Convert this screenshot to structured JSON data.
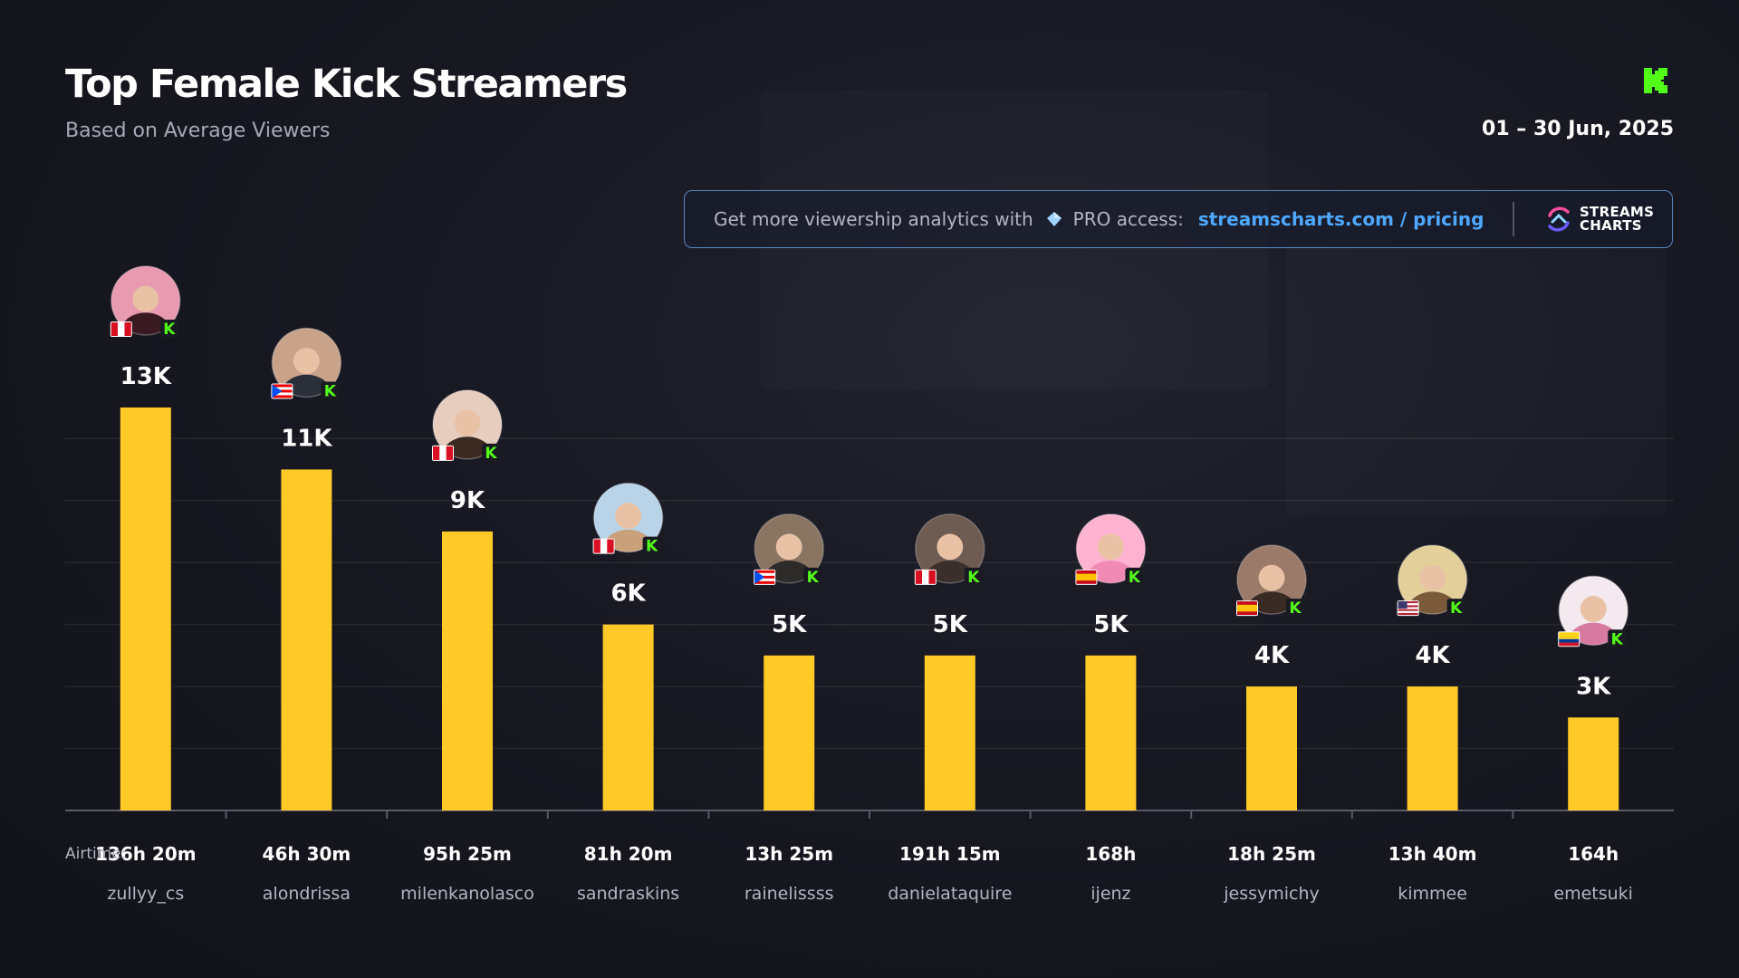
{
  "header": {
    "title": "Top Female Kick Streamers",
    "subtitle": "Based on Average Viewers",
    "date_range": "01 – 30 Jun, 2025",
    "platform_icon": "kick-logo-icon"
  },
  "promo": {
    "text": "Get more viewership analytics with",
    "pro_label": "PRO access:",
    "link": "streamscharts.com / pricing",
    "brand_line1": "STREAMS",
    "brand_line2": "CHARTS"
  },
  "colors": {
    "bar": "#ffca28",
    "link": "#4fa8ff",
    "kick_green": "#53fc18"
  },
  "chart_data": {
    "type": "bar",
    "title": "Top Female Kick Streamers",
    "subtitle": "Based on Average Viewers",
    "categories": [
      "zullyy_cs",
      "alondrissa",
      "milenkanolasco",
      "sandraskins",
      "rainelissss",
      "danielataquire",
      "ijenz",
      "jessymichy",
      "kimmee",
      "emetsuki"
    ],
    "values": [
      13000,
      11000,
      9000,
      6000,
      5000,
      5000,
      5000,
      4000,
      4000,
      3000
    ],
    "value_labels": [
      "13K",
      "11K",
      "9K",
      "6K",
      "5K",
      "5K",
      "5K",
      "4K",
      "4K",
      "3K"
    ],
    "airtime_prefix": "Airtime:",
    "airtime": [
      "136h 20m",
      "46h 30m",
      "95h 25m",
      "81h 20m",
      "13h 25m",
      "191h 15m",
      "168h",
      "18h 25m",
      "13h 40m",
      "164h"
    ],
    "countries": [
      "peru",
      "puerto-rico",
      "peru",
      "peru",
      "puerto-rico",
      "peru",
      "spain",
      "spain",
      "usa",
      "colombia"
    ],
    "ylim": [
      0,
      16000
    ],
    "grid": true,
    "legend": "none"
  }
}
